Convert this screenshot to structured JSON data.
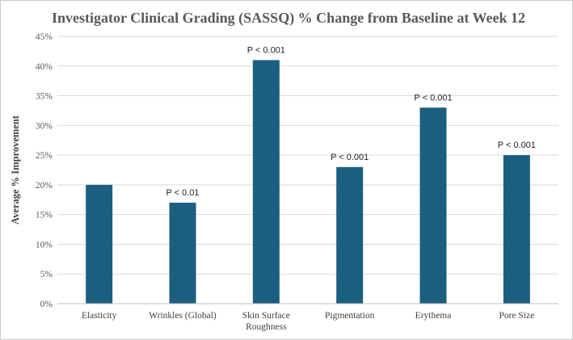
{
  "chart_data": {
    "type": "bar",
    "title": "Investigator Clinical Grading (SASSQ) % Change from Baseline at Week 12",
    "xlabel": "",
    "ylabel": "Average % Improvement",
    "ylim": [
      0,
      45
    ],
    "ytick_step": 5,
    "ytick_suffix": "%",
    "grid": true,
    "legend": "none",
    "bar_color": "#1b5f80",
    "categories": [
      [
        "Elasticity"
      ],
      [
        "Wrinkles (Global)"
      ],
      [
        "Skin Surface",
        "Roughness"
      ],
      [
        "Pigmentation"
      ],
      [
        "Erythema"
      ],
      [
        "Pore Size"
      ]
    ],
    "values": [
      20,
      17,
      41,
      23,
      33,
      25
    ],
    "annotations": [
      "",
      "P < 0.01",
      "P < 0.001",
      "P < 0.001",
      "P < 0.001",
      "P < 0.001"
    ]
  }
}
